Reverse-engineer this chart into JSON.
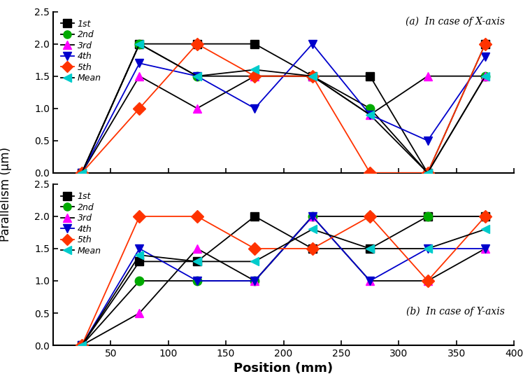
{
  "x_positions": [
    25,
    75,
    125,
    175,
    225,
    275,
    325,
    375
  ],
  "x_axis": {
    "1st": [
      0.0,
      2.0,
      2.0,
      2.0,
      1.5,
      1.5,
      0.0,
      2.0
    ],
    "2nd": [
      0.0,
      2.0,
      1.5,
      1.5,
      1.5,
      1.0,
      0.0,
      1.5
    ],
    "3rd": [
      0.0,
      1.5,
      1.0,
      1.5,
      1.5,
      0.9,
      1.5,
      1.5
    ],
    "4th": [
      0.0,
      1.7,
      1.5,
      1.0,
      2.0,
      0.9,
      0.5,
      1.8
    ],
    "5th": [
      0.0,
      1.0,
      2.0,
      1.5,
      1.5,
      0.0,
      0.0,
      2.0
    ],
    "Mean": [
      0.0,
      2.0,
      1.5,
      1.6,
      1.5,
      0.9,
      0.0,
      1.5
    ]
  },
  "y_axis": {
    "1st": [
      0.0,
      1.3,
      1.3,
      2.0,
      1.5,
      1.5,
      2.0,
      2.0
    ],
    "2nd": [
      0.0,
      1.0,
      1.0,
      1.0,
      2.0,
      2.0,
      2.0,
      2.0
    ],
    "3rd": [
      0.0,
      0.5,
      1.5,
      1.0,
      2.0,
      1.0,
      1.0,
      1.5
    ],
    "4th": [
      0.0,
      1.5,
      1.0,
      1.0,
      2.0,
      1.0,
      1.5,
      1.5
    ],
    "5th": [
      0.0,
      2.0,
      2.0,
      1.5,
      1.5,
      2.0,
      1.0,
      2.0
    ],
    "Mean": [
      0.0,
      1.4,
      1.3,
      1.3,
      1.8,
      1.5,
      1.5,
      1.8
    ]
  },
  "colors": {
    "1st": "#000000",
    "2nd": "#00AA00",
    "3rd": "#FF00FF",
    "4th": "#0000CC",
    "5th": "#FF3300",
    "Mean": "#00CCCC"
  },
  "line_colors": {
    "1st": "#000000",
    "2nd": "#000000",
    "3rd": "#000000",
    "4th": "#0000CC",
    "5th": "#FF3300",
    "Mean": "#000000"
  },
  "markers": {
    "1st": "s",
    "2nd": "o",
    "3rd": "^",
    "4th": "v",
    "5th": "D",
    "Mean": "<"
  },
  "series_order": [
    "1st",
    "2nd",
    "3rd",
    "4th",
    "5th",
    "Mean"
  ],
  "title_a": "(a)  In case of X-axis",
  "title_b": "(b)  In case of Y-axis",
  "ylabel": "Parallelism (μm)",
  "xlabel": "Position (mm)",
  "ylim": [
    0.0,
    2.5
  ],
  "xlim": [
    0,
    400
  ],
  "yticks": [
    0.0,
    0.5,
    1.0,
    1.5,
    2.0,
    2.5
  ],
  "xticks": [
    0,
    50,
    100,
    150,
    200,
    250,
    300,
    350,
    400
  ],
  "xticklabels": [
    "",
    "50",
    "100",
    "150",
    "200",
    "250",
    "300",
    "350",
    "400"
  ],
  "markersize": 9,
  "linewidth": 1.3
}
